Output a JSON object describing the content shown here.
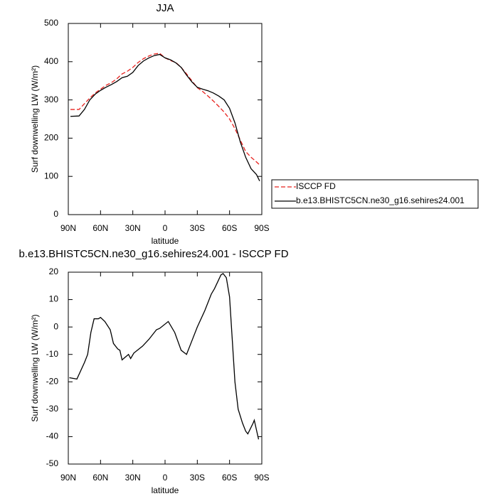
{
  "chart_data": [
    {
      "type": "line",
      "title": "JJA",
      "xlabel": "latitude",
      "ylabel": "Surf downwelling LW (W/m²)",
      "x": [
        88,
        80,
        75,
        70,
        65,
        60,
        55,
        50,
        45,
        40,
        35,
        30,
        25,
        20,
        15,
        10,
        5,
        0,
        -5,
        -10,
        -15,
        -20,
        -25,
        -30,
        -35,
        -40,
        -45,
        -50,
        -55,
        -60,
        -65,
        -70,
        -75,
        -80,
        -85,
        -88
      ],
      "series": [
        {
          "name": "ISCCP FD",
          "color": "#e8231f",
          "dash": true,
          "values": [
            275,
            275,
            290,
            305,
            318,
            328,
            338,
            345,
            355,
            368,
            375,
            385,
            398,
            408,
            415,
            420,
            422,
            410,
            403,
            398,
            385,
            368,
            350,
            332,
            322,
            310,
            297,
            283,
            268,
            250,
            225,
            195,
            165,
            150,
            138,
            130
          ]
        },
        {
          "name": "b.e13.BHISTC5CN.ne30_g16.sehires24.001",
          "color": "#000000",
          "dash": false,
          "values": [
            257,
            258,
            275,
            300,
            315,
            325,
            333,
            340,
            348,
            358,
            362,
            372,
            390,
            402,
            410,
            416,
            419,
            410,
            405,
            397,
            385,
            365,
            347,
            333,
            328,
            324,
            318,
            310,
            300,
            278,
            240,
            190,
            150,
            120,
            105,
            88
          ]
        }
      ],
      "xlim": [
        90,
        -90
      ],
      "xticks": [
        {
          "value": 90,
          "label": "90N"
        },
        {
          "value": 60,
          "label": "60N"
        },
        {
          "value": 30,
          "label": "30N"
        },
        0,
        {
          "value": -30,
          "label": "30S"
        },
        {
          "value": -60,
          "label": "60S"
        },
        {
          "value": -90,
          "label": "90S"
        }
      ],
      "ylim": [
        0,
        500
      ],
      "yticks": [
        0,
        100,
        200,
        300,
        400,
        500
      ],
      "legend": "right"
    },
    {
      "type": "line",
      "title": "b.e13.BHISTC5CN.ne30_g16.sehires24.001 - ISCCP FD",
      "xlabel": "latitude",
      "ylabel": "Surf downwelling LW (W/m²)",
      "x": [
        89,
        82,
        75,
        72,
        69,
        66,
        62,
        60,
        56,
        51,
        48,
        44,
        42,
        40,
        34,
        32,
        29,
        21,
        15,
        8,
        5,
        -3,
        -9,
        -15,
        -20,
        -25,
        -30,
        -37,
        -43,
        -46,
        -52,
        -54,
        -57,
        -60,
        -65,
        -68,
        -72,
        -75,
        -77,
        -82,
        -83,
        -87
      ],
      "values": [
        -18.5,
        -19,
        -13,
        -10,
        -2,
        3,
        3,
        3.5,
        2,
        -1,
        -6,
        -8,
        -8.5,
        -12,
        -10,
        -11.5,
        -9.5,
        -7,
        -4.5,
        -1,
        -0.5,
        2,
        -2,
        -8.5,
        -10,
        -5,
        0,
        6,
        12,
        14,
        19,
        19.5,
        18,
        11,
        -20,
        -30,
        -35,
        -38,
        -39,
        -35,
        -34,
        -41
      ],
      "color": "#000000",
      "xlim": [
        90,
        -90
      ],
      "xticks": [
        {
          "value": 90,
          "label": "90N"
        },
        {
          "value": 60,
          "label": "60N"
        },
        {
          "value": 30,
          "label": "30N"
        },
        0,
        {
          "value": -30,
          "label": "30S"
        },
        {
          "value": -60,
          "label": "60S"
        },
        {
          "value": -90,
          "label": "90S"
        }
      ],
      "ylim": [
        -50,
        20
      ],
      "yticks": [
        -50,
        -40,
        -30,
        -20,
        -10,
        0,
        10,
        20
      ]
    }
  ]
}
